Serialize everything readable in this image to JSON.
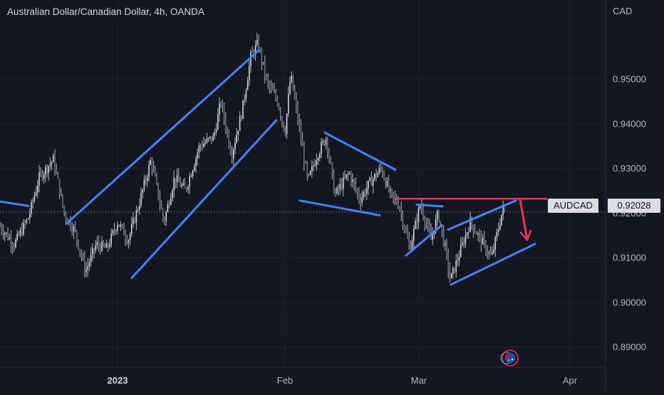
{
  "header": {
    "title": "Australian Dollar/Canadian Dollar, 4h, OANDA",
    "currency": "CAD"
  },
  "price_marker": {
    "symbol": "AUDCAD",
    "price": "0.92028"
  },
  "chart_data": {
    "type": "candlestick",
    "title": "Australian Dollar/Canadian Dollar, 4h, OANDA",
    "y_unit": "CAD",
    "y_ticks": [
      "0.89000",
      "0.90000",
      "0.91000",
      "0.92000",
      "0.93000",
      "0.94000",
      "0.95000"
    ],
    "ylim": [
      0.8855,
      0.9645
    ],
    "x_ticks": [
      {
        "label": "2023",
        "t": 165,
        "bold": true
      },
      {
        "label": "Feb",
        "t": 400,
        "bold": false
      },
      {
        "label": "Mar",
        "t": 588,
        "bold": false
      },
      {
        "label": "Apr",
        "t": 800,
        "bold": false
      }
    ],
    "xlim": [
      0,
      850
    ],
    "last_price": 0.92028,
    "price_path": [
      [
        0,
        0.917
      ],
      [
        20,
        0.913
      ],
      [
        40,
        0.919
      ],
      [
        55,
        0.928
      ],
      [
        75,
        0.932
      ],
      [
        90,
        0.92
      ],
      [
        105,
        0.916
      ],
      [
        120,
        0.907
      ],
      [
        135,
        0.913
      ],
      [
        150,
        0.912
      ],
      [
        165,
        0.918
      ],
      [
        180,
        0.914
      ],
      [
        195,
        0.922
      ],
      [
        212,
        0.932
      ],
      [
        230,
        0.918
      ],
      [
        245,
        0.928
      ],
      [
        260,
        0.925
      ],
      [
        280,
        0.935
      ],
      [
        300,
        0.937
      ],
      [
        310,
        0.945
      ],
      [
        325,
        0.933
      ],
      [
        340,
        0.943
      ],
      [
        352,
        0.955
      ],
      [
        362,
        0.958
      ],
      [
        375,
        0.949
      ],
      [
        390,
        0.945
      ],
      [
        400,
        0.938
      ],
      [
        408,
        0.951
      ],
      [
        420,
        0.939
      ],
      [
        432,
        0.927
      ],
      [
        445,
        0.933
      ],
      [
        458,
        0.937
      ],
      [
        470,
        0.924
      ],
      [
        490,
        0.929
      ],
      [
        505,
        0.923
      ],
      [
        520,
        0.927
      ],
      [
        535,
        0.93
      ],
      [
        548,
        0.924
      ],
      [
        560,
        0.922
      ],
      [
        575,
        0.912
      ],
      [
        590,
        0.922
      ],
      [
        605,
        0.914
      ],
      [
        615,
        0.92
      ],
      [
        625,
        0.912
      ],
      [
        632,
        0.905
      ],
      [
        645,
        0.911
      ],
      [
        660,
        0.918
      ],
      [
        675,
        0.914
      ],
      [
        690,
        0.91
      ],
      [
        700,
        0.917
      ],
      [
        706,
        0.921
      ],
      [
        710,
        0.92
      ]
    ],
    "annotations": [
      {
        "kind": "trendline",
        "color": "#4282f5",
        "points": [
          [
            0,
            0.9226
          ],
          [
            40,
            0.9216
          ]
        ]
      },
      {
        "kind": "trendline",
        "color": "#4282f5",
        "points": [
          [
            93,
            0.9176
          ],
          [
            363,
            0.9564
          ]
        ]
      },
      {
        "kind": "trendline",
        "color": "#4282f5",
        "points": [
          [
            185,
            0.9055
          ],
          [
            388,
            0.9408
          ]
        ]
      },
      {
        "kind": "trendline",
        "color": "#4282f5",
        "points": [
          [
            456,
            0.938
          ],
          [
            555,
            0.9297
          ]
        ]
      },
      {
        "kind": "trendline",
        "color": "#4282f5",
        "points": [
          [
            421,
            0.9228
          ],
          [
            533,
            0.9195
          ]
        ]
      },
      {
        "kind": "trendline",
        "color": "#4282f5",
        "points": [
          [
            570,
            0.9105
          ],
          [
            620,
            0.9173
          ]
        ]
      },
      {
        "kind": "trendline",
        "color": "#4282f5",
        "points": [
          [
            585,
            0.9219
          ],
          [
            621,
            0.9215
          ]
        ]
      },
      {
        "kind": "trendline",
        "color": "#4282f5",
        "points": [
          [
            629,
            0.9163
          ],
          [
            724,
            0.9228
          ]
        ]
      },
      {
        "kind": "trendline",
        "color": "#4282f5",
        "points": [
          [
            633,
            0.904
          ],
          [
            751,
            0.9131
          ]
        ]
      },
      {
        "kind": "horizontal",
        "color": "#e0394f",
        "points": [
          [
            556,
            0.9232
          ],
          [
            767,
            0.9232
          ]
        ]
      },
      {
        "kind": "arrow",
        "color": "#e0394f",
        "points": [
          [
            730,
            0.923
          ],
          [
            740,
            0.914
          ]
        ]
      }
    ],
    "grid": true
  }
}
